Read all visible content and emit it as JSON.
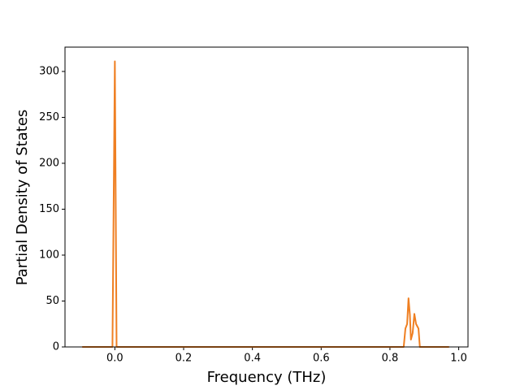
{
  "chart_data": {
    "type": "line",
    "x_label": "Frequency (THz)",
    "y_label": "Partial Density of States",
    "x": [
      -0.095,
      -0.007,
      0.0,
      0.005,
      0.84,
      0.845,
      0.85,
      0.854,
      0.858,
      0.861,
      0.866,
      0.871,
      0.876,
      0.883,
      0.887,
      0.972
    ],
    "values": [
      0,
      0,
      311,
      0,
      0,
      20,
      25,
      53,
      35,
      8,
      15,
      36,
      25,
      20,
      0,
      0
    ],
    "color": "#ef7f22",
    "xlim": [
      -0.145,
      1.027
    ],
    "ylim": [
      0,
      326.5
    ],
    "xticks": [
      {
        "value": 0,
        "label": "0.0"
      },
      0.2,
      0.4,
      0.6,
      0.8,
      {
        "value": 1,
        "label": "1.0"
      }
    ],
    "yticks": [
      0,
      50,
      100,
      150,
      200,
      250,
      300
    ]
  }
}
